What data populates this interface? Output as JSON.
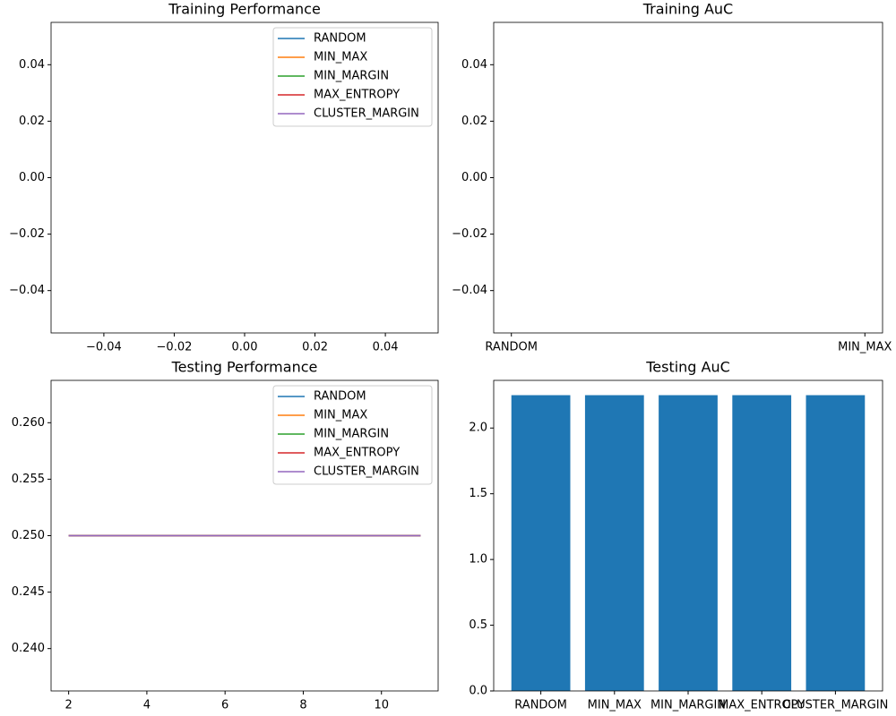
{
  "chart_data": [
    {
      "type": "line",
      "title": "Training Performance",
      "xlim": [
        -0.055,
        0.055
      ],
      "ylim": [
        -0.055,
        0.055
      ],
      "xticks": [
        {
          "value": -0.04,
          "label": "−0.04"
        },
        {
          "value": -0.02,
          "label": "−0.02"
        },
        {
          "value": 0,
          "label": "0.00"
        },
        0.02,
        0.04
      ],
      "yticks": [
        {
          "value": -0.04,
          "label": "−0.04"
        },
        {
          "value": -0.02,
          "label": "−0.02"
        },
        {
          "value": 0,
          "label": "0.00"
        },
        0.02,
        0.04
      ],
      "legend": "upper right",
      "series": [
        {
          "name": "RANDOM",
          "color": "#1f77b4",
          "x": [],
          "values": []
        },
        {
          "name": "MIN_MAX",
          "color": "#ff7f0e",
          "x": [],
          "values": []
        },
        {
          "name": "MIN_MARGIN",
          "color": "#2ca02c",
          "x": [],
          "values": []
        },
        {
          "name": "MAX_ENTROPY",
          "color": "#d62728",
          "x": [],
          "values": []
        },
        {
          "name": "CLUSTER_MARGIN",
          "color": "#9467bd",
          "x": [],
          "values": []
        }
      ]
    },
    {
      "type": "bar",
      "title": "Training AuC",
      "categories": [
        "RANDOM",
        "MIN_MAX"
      ],
      "values": [
        null,
        null
      ],
      "color": "#1f77b4",
      "ylim": [
        -0.055,
        0.055
      ],
      "yticks": [
        {
          "value": -0.04,
          "label": "−0.04"
        },
        {
          "value": -0.02,
          "label": "−0.02"
        },
        {
          "value": 0,
          "label": "0.00"
        },
        0.02,
        0.04
      ]
    },
    {
      "type": "line",
      "title": "Testing Performance",
      "xlim": [
        1.55,
        11.45
      ],
      "ylim": [
        0.23625,
        0.26375
      ],
      "xticks": [
        2,
        4,
        6,
        8,
        10
      ],
      "yticks": [
        {
          "value": 0.24,
          "label": "0.240"
        },
        0.245,
        {
          "value": 0.25,
          "label": "0.250"
        },
        0.255,
        {
          "value": 0.26,
          "label": "0.260"
        }
      ],
      "legend": "upper right",
      "series": [
        {
          "name": "RANDOM",
          "color": "#1f77b4",
          "x": [
            2,
            3,
            4,
            5,
            6,
            7,
            8,
            9,
            10,
            11
          ],
          "values": [
            0.25,
            0.25,
            0.25,
            0.25,
            0.25,
            0.25,
            0.25,
            0.25,
            0.25,
            0.25
          ]
        },
        {
          "name": "MIN_MAX",
          "color": "#ff7f0e",
          "x": [
            2,
            3,
            4,
            5,
            6,
            7,
            8,
            9,
            10,
            11
          ],
          "values": [
            0.25,
            0.25,
            0.25,
            0.25,
            0.25,
            0.25,
            0.25,
            0.25,
            0.25,
            0.25
          ]
        },
        {
          "name": "MIN_MARGIN",
          "color": "#2ca02c",
          "x": [
            2,
            3,
            4,
            5,
            6,
            7,
            8,
            9,
            10,
            11
          ],
          "values": [
            0.25,
            0.25,
            0.25,
            0.25,
            0.25,
            0.25,
            0.25,
            0.25,
            0.25,
            0.25
          ]
        },
        {
          "name": "MAX_ENTROPY",
          "color": "#d62728",
          "x": [
            2,
            3,
            4,
            5,
            6,
            7,
            8,
            9,
            10,
            11
          ],
          "values": [
            0.25,
            0.25,
            0.25,
            0.25,
            0.25,
            0.25,
            0.25,
            0.25,
            0.25,
            0.25
          ]
        },
        {
          "name": "CLUSTER_MARGIN",
          "color": "#9467bd",
          "x": [
            2,
            3,
            4,
            5,
            6,
            7,
            8,
            9,
            10,
            11
          ],
          "values": [
            0.25,
            0.25,
            0.25,
            0.25,
            0.25,
            0.25,
            0.25,
            0.25,
            0.25,
            0.25
          ]
        }
      ]
    },
    {
      "type": "bar",
      "title": "Testing AuC",
      "categories": [
        "RANDOM",
        "MIN_MAX",
        "MIN_MARGIN",
        "MAX_ENTROPY",
        "CLUSTER_MARGIN"
      ],
      "values": [
        2.25,
        2.25,
        2.25,
        2.25,
        2.25
      ],
      "color": "#1f77b4",
      "ylim": [
        0,
        2.3625
      ],
      "yticks": [
        {
          "value": 0,
          "label": "0.0"
        },
        0.5,
        {
          "value": 1,
          "label": "1.0"
        },
        1.5,
        {
          "value": 2,
          "label": "2.0"
        }
      ]
    }
  ]
}
